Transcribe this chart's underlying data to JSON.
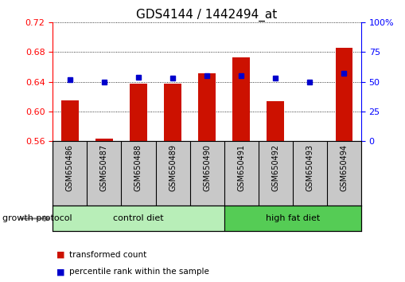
{
  "title": "GDS4144 / 1442494_at",
  "samples": [
    "GSM650486",
    "GSM650487",
    "GSM650488",
    "GSM650489",
    "GSM650490",
    "GSM650491",
    "GSM650492",
    "GSM650493",
    "GSM650494"
  ],
  "red_values": [
    0.615,
    0.563,
    0.638,
    0.638,
    0.651,
    0.673,
    0.614,
    0.558,
    0.686
  ],
  "blue_values": [
    52,
    50,
    54,
    53,
    55,
    55,
    53,
    50,
    57
  ],
  "ylim_left": [
    0.56,
    0.72
  ],
  "ylim_right": [
    0,
    100
  ],
  "yticks_left": [
    0.56,
    0.6,
    0.64,
    0.68,
    0.72
  ],
  "yticks_right": [
    0,
    25,
    50,
    75,
    100
  ],
  "ytick_labels_left": [
    "0.56",
    "0.60",
    "0.64",
    "0.68",
    "0.72"
  ],
  "ytick_labels_right": [
    "0",
    "25",
    "50",
    "75",
    "100%"
  ],
  "groups": [
    {
      "label": "control diet",
      "start": 0,
      "end": 5,
      "color": "#B8EEB8"
    },
    {
      "label": "high fat diet",
      "start": 5,
      "end": 9,
      "color": "#55CC55"
    }
  ],
  "group_label": "growth protocol",
  "red_color": "#CC1100",
  "blue_color": "#0000CC",
  "bar_bottom": 0.56,
  "bar_width": 0.5,
  "blue_marker_size": 5,
  "legend_red": "transformed count",
  "legend_blue": "percentile rank within the sample",
  "background_color": "#FFFFFF",
  "xlabel_bg": "#C8C8C8",
  "title_fontsize": 11,
  "tick_fontsize": 8,
  "sample_fontsize": 7,
  "group_fontsize": 8,
  "legend_fontsize": 7.5
}
